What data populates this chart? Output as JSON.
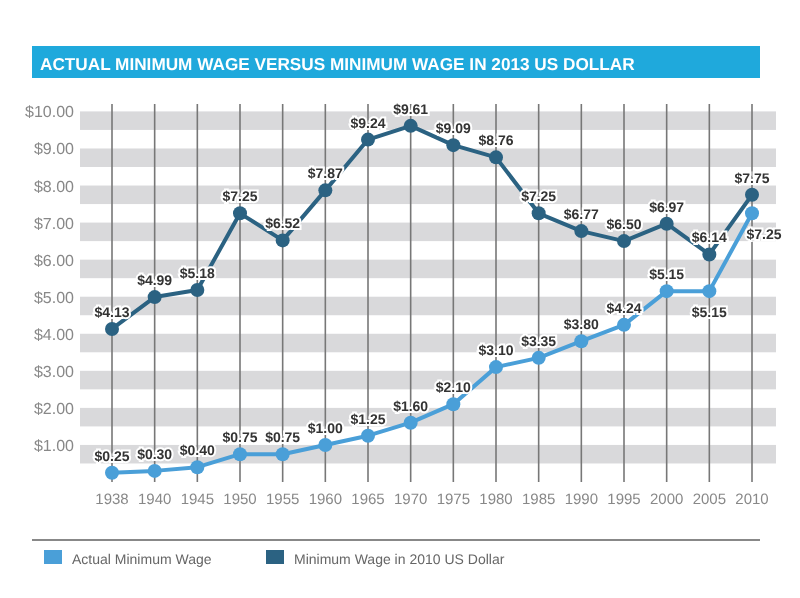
{
  "chart_data": {
    "type": "line",
    "title": "ACTUAL MINIMUM WAGE VERSUS MINIMUM WAGE IN 2013 US DOLLAR",
    "categories": [
      "1938",
      "1940",
      "1945",
      "1950",
      "1955",
      "1960",
      "1965",
      "1970",
      "1975",
      "1980",
      "1985",
      "1990",
      "1995",
      "2000",
      "2005",
      "2010"
    ],
    "series": [
      {
        "name": "Actual Minimum Wage",
        "color": "#4a9fd8",
        "values": [
          0.25,
          0.3,
          0.4,
          0.75,
          0.75,
          1.0,
          1.25,
          1.6,
          2.1,
          3.1,
          3.35,
          3.8,
          4.24,
          5.15,
          5.15,
          7.25
        ],
        "value_labels": [
          "$0.25",
          "$0.30",
          "$0.40",
          "$0.75",
          "$0.75",
          "$1.00",
          "$1.25",
          "$1.60",
          "$2.10",
          "$3.10",
          "$3.35",
          "$3.80",
          "$4.24",
          "$5.15",
          "$5.15",
          "$7.25"
        ]
      },
      {
        "name": "Minimum Wage in 2010 US Dollar",
        "color": "#2b6282",
        "values": [
          4.13,
          4.99,
          5.18,
          7.25,
          6.52,
          7.87,
          9.24,
          9.61,
          9.09,
          8.76,
          7.25,
          6.77,
          6.5,
          6.97,
          6.14,
          7.75
        ],
        "value_labels": [
          "$4.13",
          "$4.99",
          "$5.18",
          "$7.25",
          "$6.52",
          "$7.87",
          "$9.24",
          "$9.61",
          "$9.09",
          "$8.76",
          "$7.25",
          "$6.77",
          "$6.50",
          "$6.97",
          "$6.14",
          "$7.75"
        ]
      }
    ],
    "ylim": [
      0,
      10.2
    ],
    "yticks": [
      {
        "value": 1,
        "label": "$1.00"
      },
      {
        "value": 2,
        "label": "$2.00"
      },
      {
        "value": 3,
        "label": "$3.00"
      },
      {
        "value": 4,
        "label": "$4.00"
      },
      {
        "value": 5,
        "label": "$5.00"
      },
      {
        "value": 6,
        "label": "$6.00"
      },
      {
        "value": 7,
        "label": "$7.00"
      },
      {
        "value": 8,
        "label": "$8.00"
      },
      {
        "value": 9,
        "label": "$9.00"
      },
      {
        "value": 10,
        "label": "$10.00"
      }
    ],
    "bands": [
      {
        "axis": "y",
        "from": 0.5,
        "to": 1,
        "color": "#d9d9db"
      },
      {
        "axis": "y",
        "from": 1.5,
        "to": 2,
        "color": "#d9d9db"
      },
      {
        "axis": "y",
        "from": 2.5,
        "to": 3,
        "color": "#d9d9db"
      },
      {
        "axis": "y",
        "from": 3.5,
        "to": 4,
        "color": "#d9d9db"
      },
      {
        "axis": "y",
        "from": 4.5,
        "to": 5,
        "color": "#d9d9db"
      },
      {
        "axis": "y",
        "from": 5.5,
        "to": 6,
        "color": "#d9d9db"
      },
      {
        "axis": "y",
        "from": 6.5,
        "to": 7,
        "color": "#d9d9db"
      },
      {
        "axis": "y",
        "from": 7.5,
        "to": 8,
        "color": "#d9d9db"
      },
      {
        "axis": "y",
        "from": 8.5,
        "to": 9,
        "color": "#d9d9db"
      },
      {
        "axis": "y",
        "from": 9.5,
        "to": 10,
        "color": "#d9d9db"
      }
    ],
    "grid": "x",
    "legend": "bottom",
    "marker": "circle",
    "line_style": "solid"
  }
}
